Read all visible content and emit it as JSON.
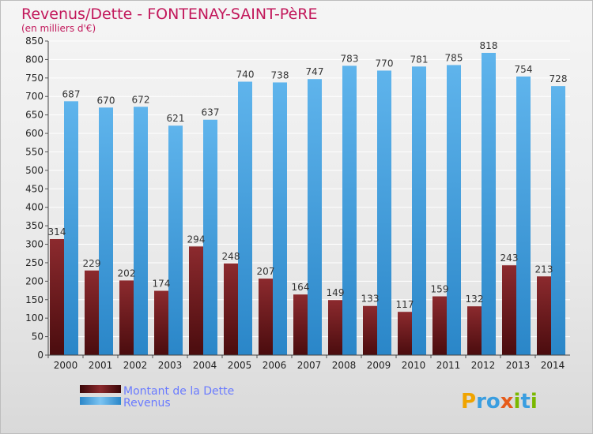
{
  "chart_data": {
    "type": "bar",
    "title": "Revenus/Dette - FONTENAY-SAINT-PèRE",
    "subtitle": "(en milliers d'€)",
    "categories": [
      "2000",
      "2001",
      "2002",
      "2003",
      "2004",
      "2005",
      "2006",
      "2007",
      "2008",
      "2009",
      "2010",
      "2011",
      "2012",
      "2013",
      "2014"
    ],
    "series": [
      {
        "name": "Montant de la Dette",
        "color": "#7a1e22",
        "values": [
          314,
          229,
          202,
          174,
          294,
          248,
          207,
          164,
          149,
          133,
          117,
          159,
          132,
          243,
          213
        ]
      },
      {
        "name": "Revenus",
        "color": "#3a9ee0",
        "values": [
          687,
          670,
          672,
          621,
          637,
          740,
          738,
          747,
          783,
          770,
          781,
          785,
          818,
          754,
          728
        ]
      }
    ],
    "ylim": [
      0,
      850
    ],
    "ytick_step": 50,
    "grid": true,
    "legend": "bottom-left"
  },
  "branding": {
    "logo_text": "Proxiti"
  }
}
